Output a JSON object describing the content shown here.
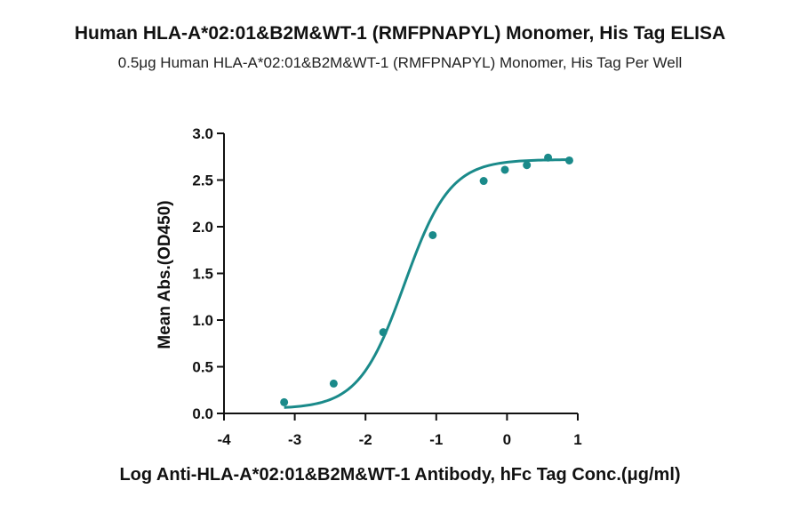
{
  "chart_data": {
    "type": "line",
    "title": "Human HLA-A*02:01&B2M&WT-1 (RMFPNAPYL) Monomer, His Tag ELISA",
    "subtitle": "0.5μg Human HLA-A*02:01&B2M&WT-1 (RMFPNAPYL) Monomer, His Tag Per Well",
    "xlabel": "Log Anti-HLA-A*02:01&B2M&WT-1 Antibody, hFc Tag Conc.(μg/ml)",
    "ylabel": "Mean Abs.(OD450)",
    "xlim": [
      -4,
      1
    ],
    "ylim": [
      0,
      3.0
    ],
    "xticks": [
      -4,
      -3,
      -2,
      -1,
      0,
      1
    ],
    "yticks": [
      "0.0",
      "0.5",
      "1.0",
      "1.5",
      "2.0",
      "2.5",
      "3.0"
    ],
    "color": "#1a8a8a",
    "grid": false,
    "series": [
      {
        "x": [
          -3.15,
          -2.45,
          -1.75,
          -1.05,
          -0.33,
          -0.03,
          0.28,
          0.58,
          0.88
        ],
        "y": [
          0.12,
          0.32,
          0.87,
          1.91,
          2.49,
          2.61,
          2.66,
          2.74,
          2.71
        ]
      }
    ],
    "fit_curve": {
      "bottom": 0.05,
      "top": 2.72,
      "log_ec50": -1.45,
      "hill": 1.35
    }
  }
}
